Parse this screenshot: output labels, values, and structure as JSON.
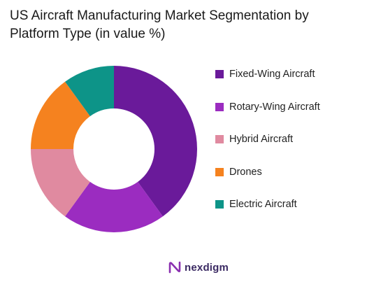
{
  "chart_data": {
    "type": "pie",
    "donut": true,
    "title": "US Aircraft Manufacturing Market Segmentation by Platform Type (in value %)",
    "categories": [
      "Fixed-Wing Aircraft",
      "Rotary-Wing Aircraft",
      "Hybrid Aircraft",
      "Drones",
      "Electric Aircraft"
    ],
    "values": [
      40,
      20,
      15,
      15,
      10
    ],
    "colors": [
      "#6a1a9a",
      "#9b2cc0",
      "#e08aa0",
      "#f5821f",
      "#0d9488"
    ],
    "legend_position": "right"
  },
  "branding": {
    "logo_text": "nexdigm",
    "logo_color": "#3b2a63",
    "logo_mark_color": "#8a2fb0"
  }
}
